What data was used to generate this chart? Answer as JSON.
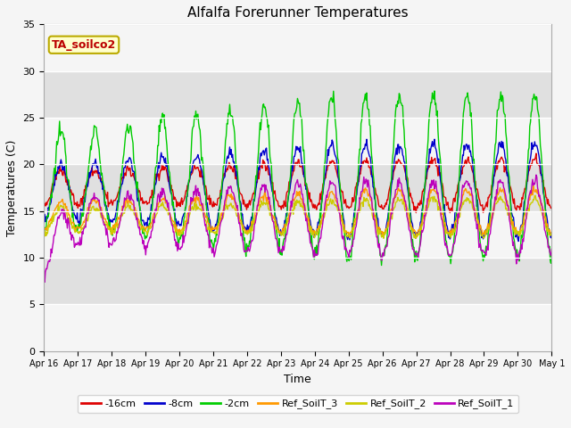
{
  "title": "Alfalfa Forerunner Temperatures",
  "xlabel": "Time",
  "ylabel": "Temperatures (C)",
  "ylim": [
    0,
    35
  ],
  "yticks": [
    0,
    5,
    10,
    15,
    20,
    25,
    30,
    35
  ],
  "annotation_text": "TA_soilco2",
  "annotation_color": "#bb0000",
  "annotation_bg": "#ffffcc",
  "annotation_border": "#bbaa00",
  "series": [
    {
      "label": "-16cm",
      "color": "#dd0000"
    },
    {
      "label": "-8cm",
      "color": "#0000cc"
    },
    {
      "label": "-2cm",
      "color": "#00cc00"
    },
    {
      "label": "Ref_SoilT_3",
      "color": "#ff9900"
    },
    {
      "label": "Ref_SoilT_2",
      "color": "#cccc00"
    },
    {
      "label": "Ref_SoilT_1",
      "color": "#bb00bb"
    }
  ],
  "tick_labels": [
    "Apr 16",
    "Apr 17",
    "Apr 18",
    "Apr 19",
    "Apr 20",
    "Apr 21",
    "Apr 22",
    "Apr 23",
    "Apr 24",
    "Apr 25",
    "Apr 26",
    "Apr 27",
    "Apr 28",
    "Apr 29",
    "Apr 30",
    "May 1"
  ],
  "n_days": 15,
  "pts_per_day": 48,
  "figsize": [
    6.4,
    4.8
  ],
  "dpi": 100
}
